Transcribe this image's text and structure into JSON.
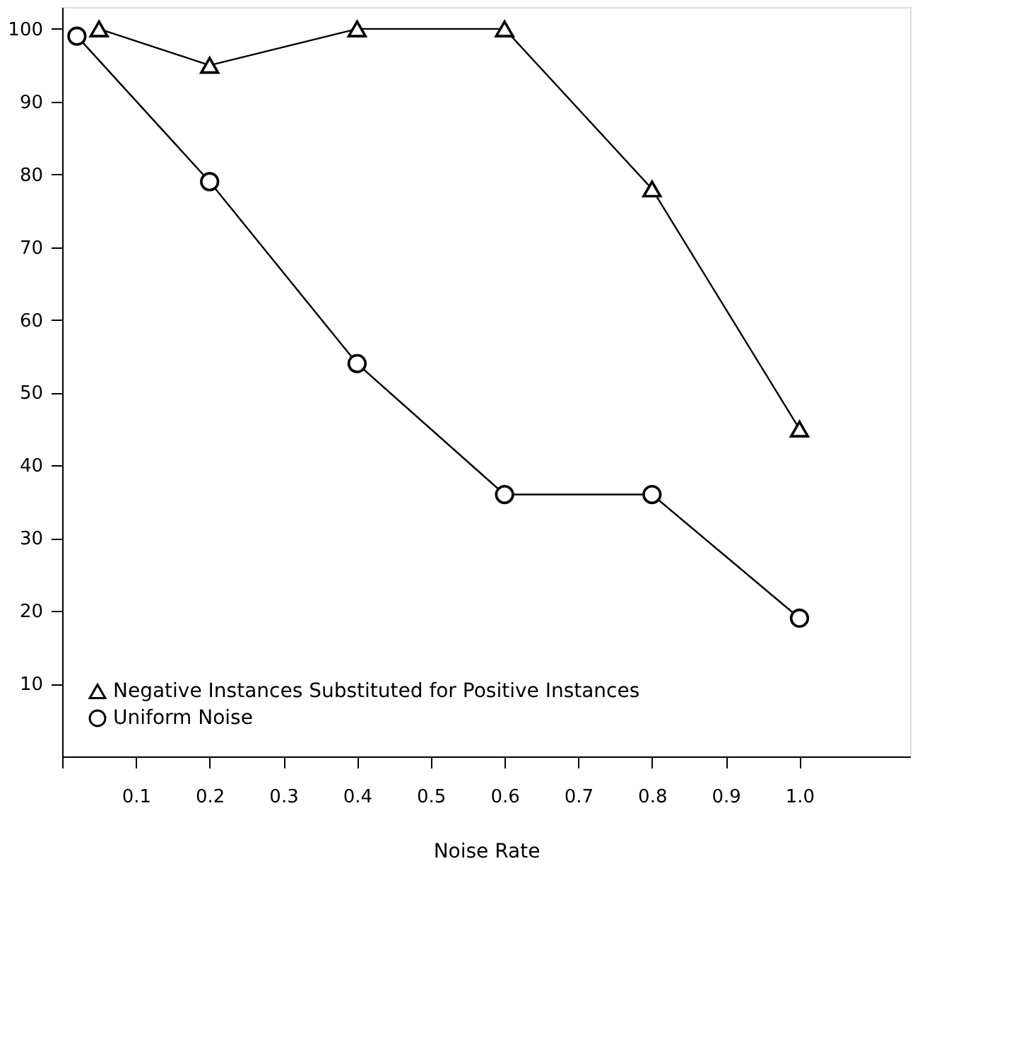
{
  "chart_data": {
    "type": "line",
    "xlabel": "Noise Rate",
    "xlim": [
      0,
      1.15
    ],
    "ylim": [
      0,
      103
    ],
    "xticks": [
      {
        "value": 0,
        "label": null
      },
      0.1,
      0.2,
      0.3,
      0.4,
      0.5,
      0.6,
      0.7,
      0.8,
      0.9,
      {
        "value": 1.0,
        "label": "1.0"
      }
    ],
    "yticks": [
      10,
      20,
      30,
      40,
      50,
      60,
      70,
      80,
      90,
      100
    ],
    "grid": false,
    "legend": "bottom",
    "line_style": "solid",
    "series": [
      {
        "name": "Negative Instances Substituted for Positive Instances",
        "color": "#000000",
        "marker": "triangle",
        "x": [
          0.05,
          0.2,
          0.4,
          0.6,
          0.8,
          1.0
        ],
        "values": [
          100,
          95,
          100,
          100,
          78,
          45
        ]
      },
      {
        "name": "Uniform Noise",
        "color": "#000000",
        "marker": "circle",
        "x": [
          0.02,
          0.2,
          0.4,
          0.6,
          0.8,
          1.0
        ],
        "values": [
          99,
          79,
          54,
          36,
          36,
          19
        ]
      }
    ]
  }
}
